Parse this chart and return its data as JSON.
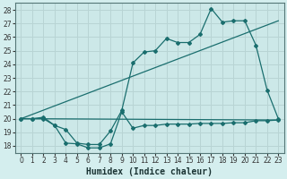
{
  "xlabel": "Humidex (Indice chaleur)",
  "bg_color": "#d4eeee",
  "plot_bg_color": "#cce8e8",
  "grid_color": "#b8d4d4",
  "line_color": "#1a6e6e",
  "xlim": [
    -0.5,
    23.5
  ],
  "ylim": [
    17.5,
    28.5
  ],
  "yticks": [
    18,
    19,
    20,
    21,
    22,
    23,
    24,
    25,
    26,
    27,
    28
  ],
  "xticks": [
    0,
    1,
    2,
    3,
    4,
    5,
    6,
    7,
    8,
    9,
    10,
    11,
    12,
    13,
    14,
    15,
    16,
    17,
    18,
    19,
    20,
    21,
    22,
    23
  ],
  "series1_x": [
    0,
    1,
    2,
    3,
    4,
    5,
    6,
    7,
    8,
    9,
    10,
    11,
    12,
    13,
    14,
    15,
    16,
    17,
    18,
    19,
    20,
    21,
    22,
    23
  ],
  "series1_y": [
    20.0,
    20.0,
    20.0,
    19.5,
    18.2,
    18.15,
    17.85,
    17.85,
    18.15,
    20.5,
    19.3,
    19.5,
    19.5,
    19.6,
    19.6,
    19.6,
    19.65,
    19.65,
    19.65,
    19.7,
    19.7,
    19.85,
    19.85,
    19.9
  ],
  "series2_x": [
    0,
    1,
    2,
    3,
    4,
    5,
    6,
    7,
    8,
    9,
    10,
    11,
    12,
    13,
    14,
    15,
    16,
    17,
    18,
    19,
    20,
    21,
    22,
    23
  ],
  "series2_y": [
    20.0,
    20.0,
    20.1,
    19.5,
    19.2,
    18.2,
    18.1,
    18.1,
    19.1,
    20.6,
    24.1,
    24.9,
    25.0,
    25.9,
    25.6,
    25.6,
    26.2,
    28.1,
    27.1,
    27.2,
    27.2,
    25.4,
    22.1,
    20.0
  ],
  "series3_x": [
    0,
    23
  ],
  "series3_y": [
    20.0,
    27.2
  ],
  "series4_x": [
    0,
    23
  ],
  "series4_y": [
    20.0,
    19.9
  ],
  "xlabel_fontsize": 7,
  "tick_fontsize": 5.5
}
